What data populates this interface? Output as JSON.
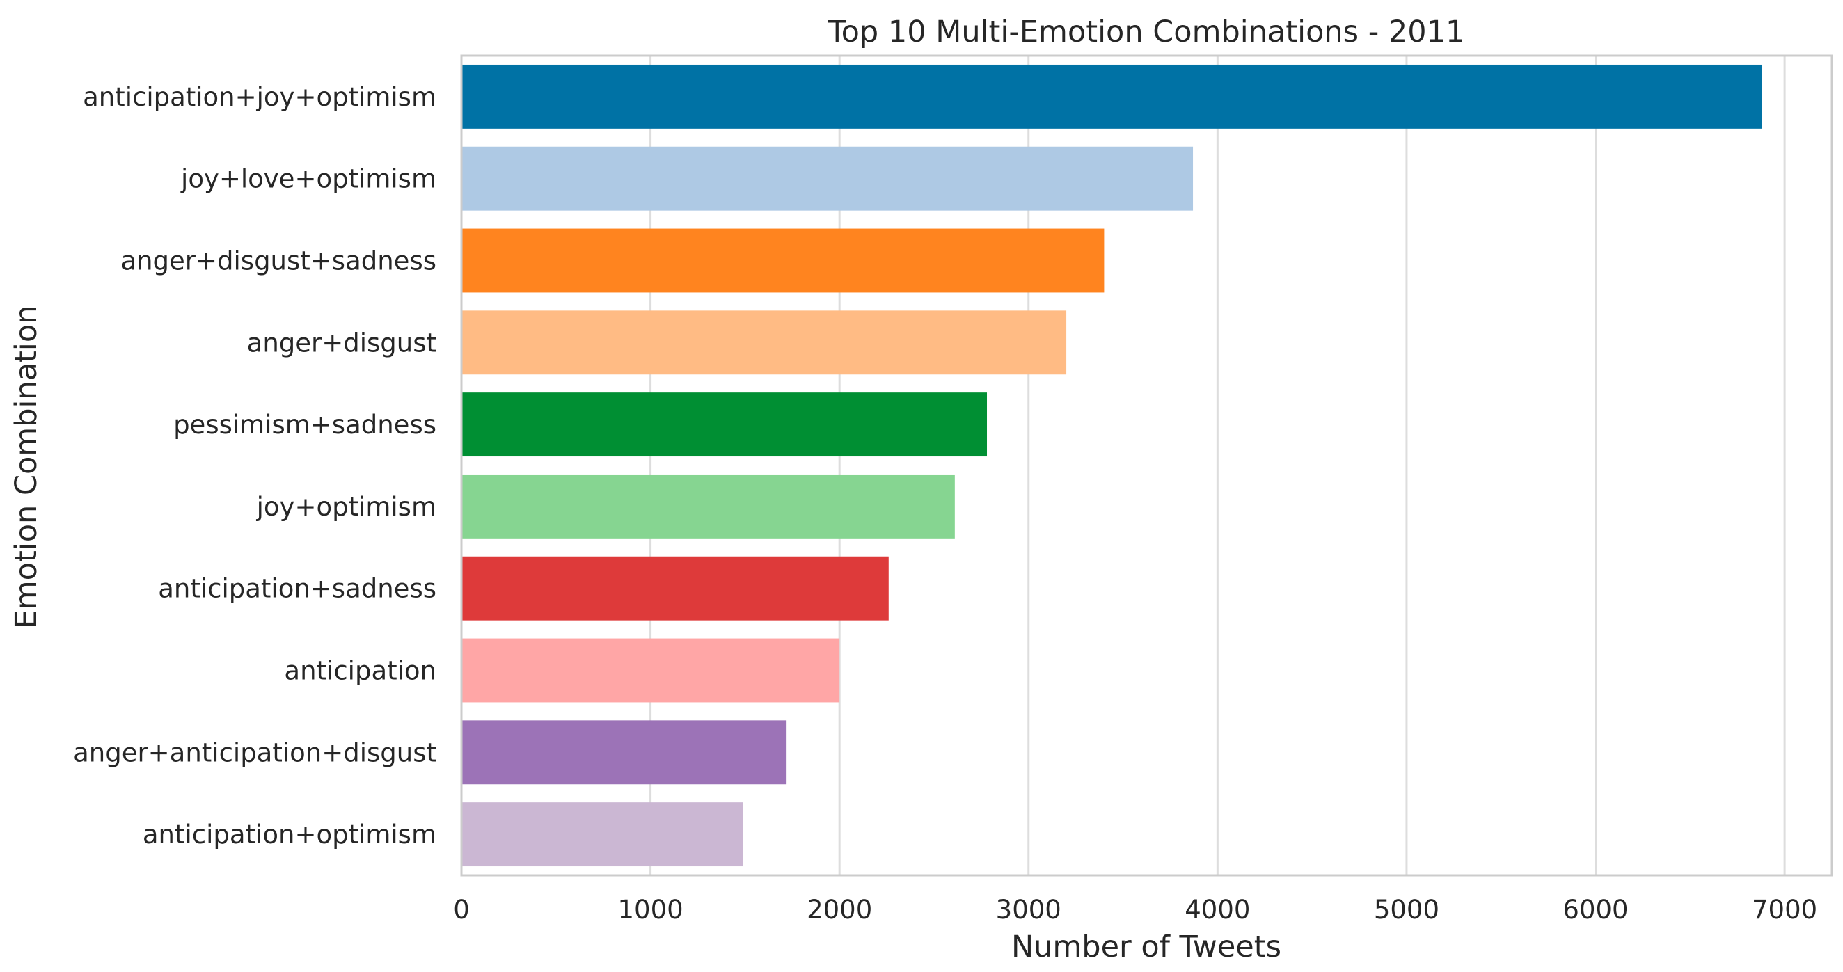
{
  "chart_data": {
    "type": "bar",
    "orientation": "horizontal",
    "title": "Top 10 Multi-Emotion Combinations - 2011",
    "xlabel": "Number of Tweets",
    "ylabel": "Emotion Combination",
    "categories": [
      "anticipation+joy+optimism",
      "joy+love+optimism",
      "anger+disgust+sadness",
      "anger+disgust",
      "pessimism+sadness",
      "joy+optimism",
      "anticipation+sadness",
      "anticipation",
      "anger+anticipation+disgust",
      "anticipation+optimism"
    ],
    "values": [
      6880,
      3870,
      3400,
      3200,
      2780,
      2610,
      2260,
      2000,
      1720,
      1490
    ],
    "colors": [
      "#0072a5",
      "#aec9e4",
      "#ff841f",
      "#ffbb84",
      "#008f33",
      "#86d591",
      "#de3a3a",
      "#ffa6a6",
      "#9c73b7",
      "#cbb7d3"
    ],
    "xlim": [
      0,
      7250
    ],
    "xticks": [
      0,
      1000,
      2000,
      3000,
      4000,
      5000,
      6000,
      7000
    ],
    "grid": "vertical",
    "legend": "none"
  }
}
